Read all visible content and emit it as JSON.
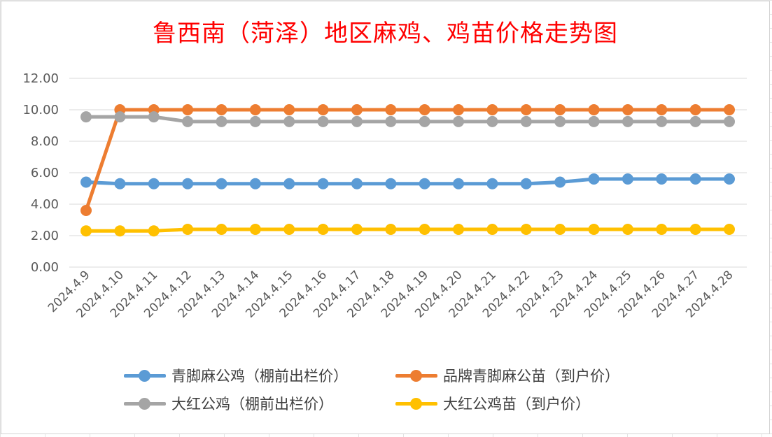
{
  "chart_data": {
    "type": "line",
    "title": "鲁西南（菏泽）地区麻鸡、鸡苗价格走势图",
    "categories": [
      "2024.4.9",
      "2024.4.10",
      "2024.4.11",
      "2024.4.12",
      "2024.4.13",
      "2024.4.14",
      "2024.4.15",
      "2024.4.16",
      "2024.4.17",
      "2024.4.18",
      "2024.4.19",
      "2024.4.20",
      "2024.4.21",
      "2024.4.22",
      "2024.4.23",
      "2024.4.24",
      "2024.4.25",
      "2024.4.26",
      "2024.4.27",
      "2024.4.28"
    ],
    "y_ticks": [
      "0.00",
      "2.00",
      "4.00",
      "6.00",
      "8.00",
      "10.00",
      "12.00"
    ],
    "ylim": [
      0,
      12
    ],
    "grid": true,
    "legend_position": "bottom",
    "series": [
      {
        "name": "青脚麻公鸡（棚前出栏价）",
        "color": "#5b9bd5",
        "values": [
          5.4,
          5.3,
          5.3,
          5.3,
          5.3,
          5.3,
          5.3,
          5.3,
          5.3,
          5.3,
          5.3,
          5.3,
          5.3,
          5.3,
          5.4,
          5.6,
          5.6,
          5.6,
          5.6,
          5.6
        ]
      },
      {
        "name": "品牌青脚麻公苗（到户价）",
        "color": "#ed7d31",
        "values": [
          3.6,
          10.0,
          10.0,
          10.0,
          10.0,
          10.0,
          10.0,
          10.0,
          10.0,
          10.0,
          10.0,
          10.0,
          10.0,
          10.0,
          10.0,
          10.0,
          10.0,
          10.0,
          10.0,
          10.0
        ]
      },
      {
        "name": "大红公鸡（棚前出栏价）",
        "color": "#a5a5a5",
        "values": [
          9.55,
          9.55,
          9.55,
          9.25,
          9.25,
          9.25,
          9.25,
          9.25,
          9.25,
          9.25,
          9.25,
          9.25,
          9.25,
          9.25,
          9.25,
          9.25,
          9.25,
          9.25,
          9.25,
          9.25
        ]
      },
      {
        "name": "大红公鸡苗（到户价）",
        "color": "#ffc000",
        "values": [
          2.3,
          2.3,
          2.3,
          2.4,
          2.4,
          2.4,
          2.4,
          2.4,
          2.4,
          2.4,
          2.4,
          2.4,
          2.4,
          2.4,
          2.4,
          2.4,
          2.4,
          2.4,
          2.4,
          2.4
        ]
      }
    ]
  }
}
